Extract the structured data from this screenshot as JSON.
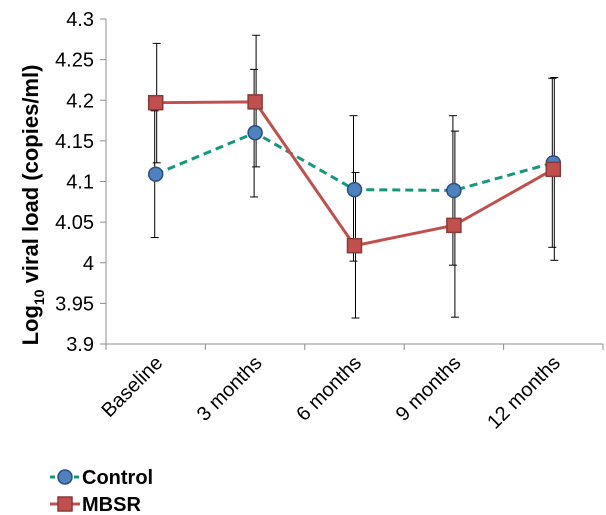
{
  "chart_data": {
    "type": "line",
    "categories": [
      "Baseline",
      "3 months",
      "6 months",
      "9 months",
      "12 months"
    ],
    "ylabel": {
      "prefix": "Log",
      "subscript": "10",
      "suffix": " viral load (copies/ml)"
    },
    "ylim": [
      3.9,
      4.3
    ],
    "yticks": [
      "4.3",
      "4.25",
      "4.2",
      "4.15",
      "4.1",
      "4.05",
      "4",
      "3.95",
      "3.9"
    ],
    "grid": false,
    "legend_position": "bottom-left",
    "series": [
      {
        "name": "Control",
        "values": [
          4.109,
          4.16,
          4.09,
          4.089,
          4.123
        ],
        "error_low": [
          4.031,
          4.081,
          4.002,
          3.997,
          4.019
        ],
        "error_high": [
          4.187,
          4.238,
          4.181,
          4.181,
          4.227
        ],
        "line_color": "#17967f",
        "marker": "circle",
        "marker_fill": "#4f81bd",
        "marker_edge": "#2a4e86",
        "line_style": "dashed"
      },
      {
        "name": "MBSR",
        "values": [
          4.197,
          4.198,
          4.021,
          4.046,
          4.115
        ],
        "error_low": [
          4.123,
          4.118,
          3.932,
          3.933,
          4.003
        ],
        "error_high": [
          4.27,
          4.28,
          4.111,
          4.162,
          4.228
        ],
        "line_color": "#c0504d",
        "marker": "square",
        "marker_fill": "#c0504d",
        "marker_edge": "#8c3836",
        "line_style": "solid"
      }
    ]
  }
}
